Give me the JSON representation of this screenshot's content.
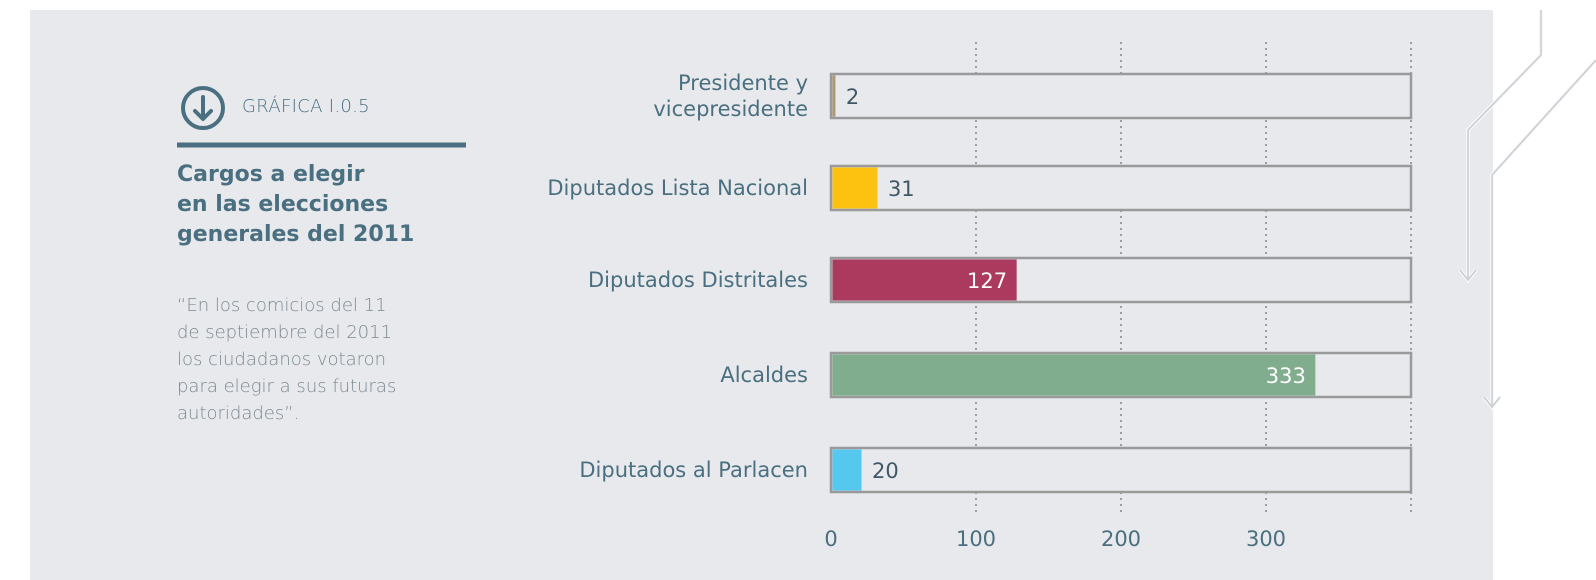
{
  "header": {
    "label": "GRÁFICA I.0.5",
    "title": "Cargos a elegir\nen las elecciones\ngenerales del 2011",
    "quote": "“En los comicios del 11\nde septiembre del 2011\nlos ciudadanos  votaron\npara elegir a sus futuras\nautoridades”."
  },
  "chart_data": {
    "type": "bar",
    "orientation": "horizontal",
    "categories": [
      "Presidente y\nvicepresidente",
      "Diputados Lista Nacional",
      "Diputados Distritales",
      "Alcaldes",
      "Diputados al Parlacen"
    ],
    "values": [
      2,
      31,
      127,
      333,
      20
    ],
    "colors": [
      "#a89a6e",
      "#fdc20f",
      "#ab3a5e",
      "#80ad8e",
      "#55c8ef"
    ],
    "xlim": [
      0,
      400
    ],
    "xticks": [
      0,
      100,
      200,
      300
    ],
    "grid": true
  }
}
